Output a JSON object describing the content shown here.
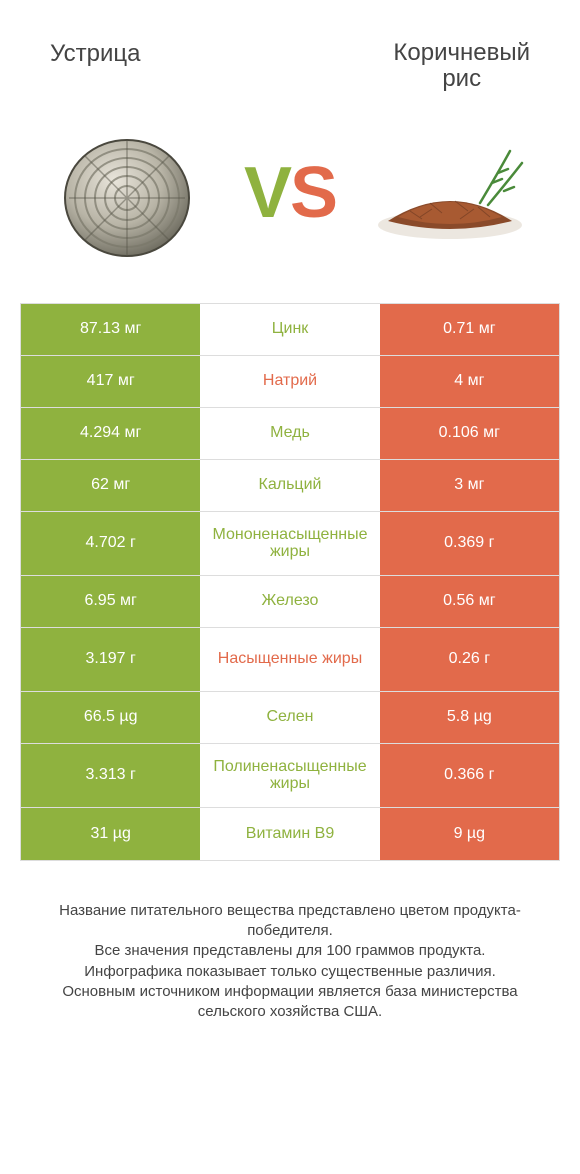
{
  "colors": {
    "left_bg": "#8fb23f",
    "right_bg": "#e26a4b",
    "mid_text_left": "#8fb23f",
    "mid_text_right": "#e26a4b",
    "title_color": "#444444",
    "footer_color": "#444444",
    "border_color": "#dddddd",
    "white": "#ffffff"
  },
  "header": {
    "left_title": "Устрица",
    "right_title_line1": "Коричневый",
    "right_title_line2": "рис",
    "vs_v": "V",
    "vs_s": "S"
  },
  "rows": [
    {
      "left": "87.13 мг",
      "label": "Цинк",
      "right": "0.71 мг",
      "label_color": "left",
      "tall": false
    },
    {
      "left": "417 мг",
      "label": "Натрий",
      "right": "4 мг",
      "label_color": "right",
      "tall": false
    },
    {
      "left": "4.294 мг",
      "label": "Медь",
      "right": "0.106 мг",
      "label_color": "left",
      "tall": false
    },
    {
      "left": "62 мг",
      "label": "Кальций",
      "right": "3 мг",
      "label_color": "left",
      "tall": false
    },
    {
      "left": "4.702 г",
      "label": "Мононенасыщенные жиры",
      "right": "0.369 г",
      "label_color": "left",
      "tall": true
    },
    {
      "left": "6.95 мг",
      "label": "Железо",
      "right": "0.56 мг",
      "label_color": "left",
      "tall": false
    },
    {
      "left": "3.197 г",
      "label": "Насыщенные жиры",
      "right": "0.26 г",
      "label_color": "right",
      "tall": true
    },
    {
      "left": "66.5 µg",
      "label": "Селен",
      "right": "5.8 µg",
      "label_color": "left",
      "tall": false
    },
    {
      "left": "3.313 г",
      "label": "Полиненасыщенные жиры",
      "right": "0.366 г",
      "label_color": "left",
      "tall": true
    },
    {
      "left": "31 µg",
      "label": "Витамин B9",
      "right": "9 µg",
      "label_color": "left",
      "tall": false
    }
  ],
  "footer": {
    "line1": "Название питательного вещества представлено цветом продукта-победителя.",
    "line2": "Все значения представлены для 100 граммов продукта.",
    "line3": "Инфографика показывает только существенные различия.",
    "line4": "Основным источником информации является база министерства сельского хозяйства США."
  }
}
